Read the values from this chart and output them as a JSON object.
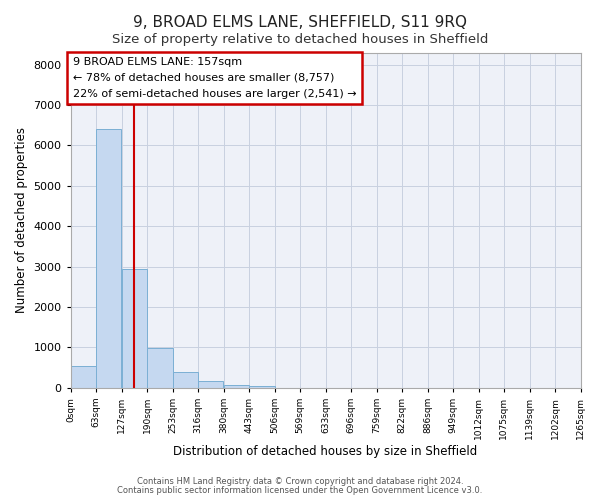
{
  "title1": "9, BROAD ELMS LANE, SHEFFIELD, S11 9RQ",
  "title2": "Size of property relative to detached houses in Sheffield",
  "xlabel": "Distribution of detached houses by size in Sheffield",
  "ylabel": "Number of detached properties",
  "bin_edges": [
    0,
    63,
    127,
    190,
    253,
    316,
    380,
    443,
    506,
    569,
    633,
    696,
    759,
    822,
    886,
    949,
    1012,
    1075,
    1139,
    1202,
    1265
  ],
  "bar_heights": [
    550,
    6400,
    2950,
    980,
    380,
    160,
    80,
    45,
    5,
    2,
    1,
    0,
    0,
    0,
    0,
    0,
    0,
    0,
    0,
    0
  ],
  "bar_color": "#c5d8f0",
  "bar_edge_color": "#7bafd4",
  "property_size": 157,
  "vline_color": "#cc0000",
  "annotation_line1": "9 BROAD ELMS LANE: 157sqm",
  "annotation_line2": "← 78% of detached houses are smaller (8,757)",
  "annotation_line3": "22% of semi-detached houses are larger (2,541) →",
  "annotation_box_color": "#cc0000",
  "annotation_text_color": "#000000",
  "ylim": [
    0,
    8300
  ],
  "yticks": [
    0,
    1000,
    2000,
    3000,
    4000,
    5000,
    6000,
    7000,
    8000
  ],
  "footer_line1": "Contains HM Land Registry data © Crown copyright and database right 2024.",
  "footer_line2": "Contains public sector information licensed under the Open Government Licence v3.0.",
  "background_color": "#ffffff",
  "plot_bg_color": "#eef1f8",
  "grid_color": "#c8d0e0",
  "tick_labels": [
    "0sqm",
    "63sqm",
    "127sqm",
    "190sqm",
    "253sqm",
    "316sqm",
    "380sqm",
    "443sqm",
    "506sqm",
    "569sqm",
    "633sqm",
    "696sqm",
    "759sqm",
    "822sqm",
    "886sqm",
    "949sqm",
    "1012sqm",
    "1075sqm",
    "1139sqm",
    "1202sqm",
    "1265sqm"
  ],
  "title1_fontsize": 11,
  "title2_fontsize": 9.5
}
